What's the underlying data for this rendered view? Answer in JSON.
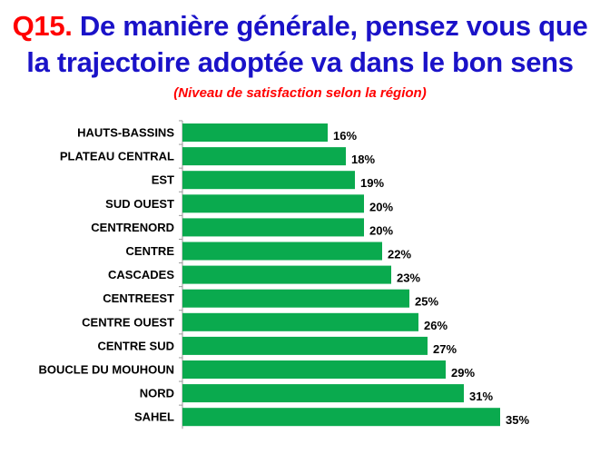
{
  "header": {
    "question_number": "Q15.",
    "title_line1": "De manière générale, pensez  vous que",
    "title_line2": "la trajectoire adoptée va dans le bon sens",
    "subtitle": "(Niveau de satisfaction selon  la région)"
  },
  "colors": {
    "bar": "#0aaa4e",
    "question_number": "#ff0000",
    "title": "#1a12c8",
    "subtitle": "#ff0000"
  },
  "chart_data": {
    "type": "bar",
    "orientation": "horizontal",
    "title": "De manière générale, pensez  vous que la trajectoire adoptée va dans le bon sens",
    "subtitle": "(Niveau de satisfaction selon  la région)",
    "categories": [
      "HAUTS-BASSINS",
      "PLATEAU CENTRAL",
      "EST",
      "SUD OUEST",
      "CENTRENORD",
      "CENTRE",
      "CASCADES",
      "CENTREEST",
      "CENTRE OUEST",
      "CENTRE SUD",
      "BOUCLE DU MOUHOUN",
      "NORD",
      "SAHEL"
    ],
    "values": [
      16,
      18,
      19,
      20,
      20,
      22,
      23,
      25,
      26,
      27,
      29,
      31,
      35
    ],
    "value_labels": [
      "16%",
      "18%",
      "19%",
      "20%",
      "20%",
      "22%",
      "23%",
      "25%",
      "26%",
      "27%",
      "29%",
      "31%",
      "35%"
    ],
    "unit": "%",
    "xlim": [
      0,
      35
    ],
    "grid": false,
    "legend": "none"
  }
}
